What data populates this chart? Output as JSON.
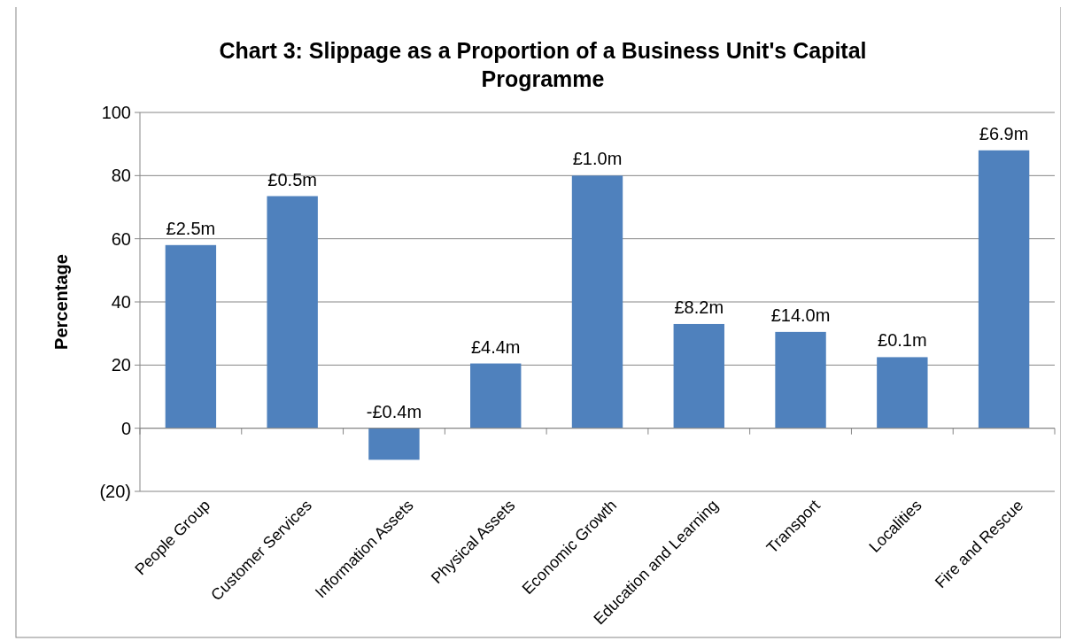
{
  "chart_data": {
    "type": "bar",
    "title": "Chart 3: Slippage as a Proportion of a Business Unit's Capital Programme",
    "ylabel": "Percentage",
    "categories": [
      "People Group",
      "Customer Services",
      "Information Assets",
      "Physical Assets",
      "Economic Growth",
      "Education and Learning",
      "Transport",
      "Localities",
      "Fire and Rescue"
    ],
    "values": [
      58,
      73.5,
      -10,
      20.5,
      80,
      33,
      30.5,
      22.5,
      88
    ],
    "annotations": [
      {
        "text": "£2.5m",
        "x": "People Group",
        "y": 58
      },
      {
        "text": "£0.5m",
        "x": "Customer Services",
        "y": 73.5
      },
      {
        "text": "-£0.4m",
        "x": "Information Assets",
        "y": 0
      },
      {
        "text": "£4.4m",
        "x": "Physical Assets",
        "y": 20.5
      },
      {
        "text": "£1.0m",
        "x": "Economic Growth",
        "y": 80
      },
      {
        "text": "£8.2m",
        "x": "Education and Learning",
        "y": 33
      },
      {
        "text": "£14.0m",
        "x": "Transport",
        "y": 30.5
      },
      {
        "text": "£0.1m",
        "x": "Localities",
        "y": 22.5
      },
      {
        "text": "£6.9m",
        "x": "Fire and Rescue",
        "y": 88
      }
    ],
    "color": "#4f81bd",
    "ylim": [
      -20,
      100
    ],
    "yticks": [
      {
        "value": -20,
        "label": "(20)"
      },
      0,
      20,
      40,
      60,
      80,
      100
    ],
    "grid": "y"
  }
}
